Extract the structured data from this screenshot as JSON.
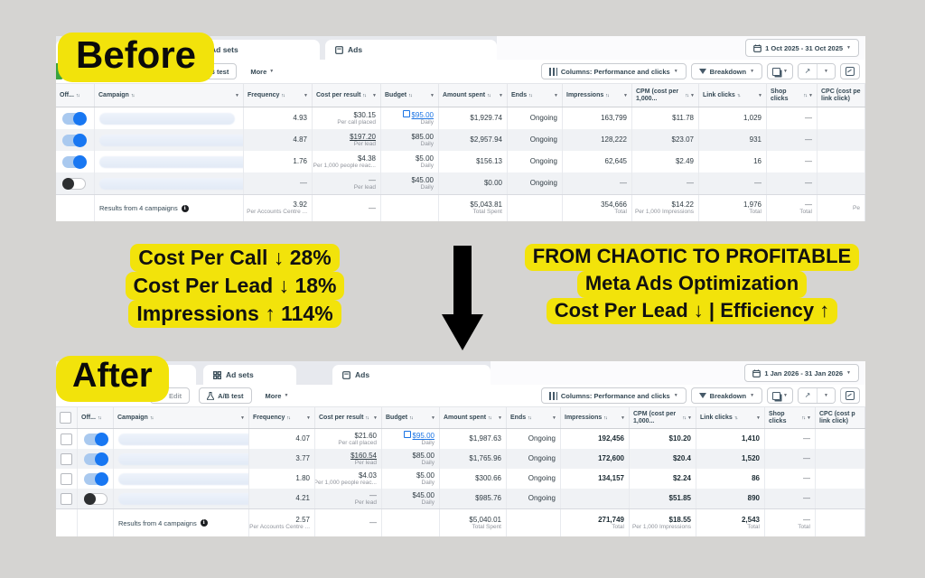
{
  "page": {
    "background": "#d5d4d2",
    "highlight_yellow": "#f2e30b",
    "toggle_blue": "#1877f2",
    "link_blue": "#1b74e4"
  },
  "labels": {
    "before": "Before",
    "after": "After"
  },
  "stats": {
    "lines": [
      "Cost Per Call ↓ 28%",
      "Cost Per Lead ↓ 18%",
      "Impressions ↑ 114%"
    ]
  },
  "headline": {
    "lines": [
      "FROM CHAOTIC TO PROFITABLE",
      "Meta Ads Optimization",
      "Cost Per Lead ↓ | Efficiency ↑"
    ]
  },
  "before": {
    "tabs": {
      "adsets": "Ad sets",
      "ads": "Ads"
    },
    "date_range": "1 Oct 2025 - 31 Oct 2025",
    "toolbar": {
      "ab_test": "A/B test",
      "more": "More",
      "columns": "Columns: Performance and clicks",
      "breakdown": "Breakdown"
    },
    "table": {
      "has_checkbox": false,
      "columns": [
        {
          "key": "off",
          "label": "Off...",
          "sort": true,
          "dd": false
        },
        {
          "key": "campaign",
          "label": "Campaign",
          "sort": true,
          "dd": true
        },
        {
          "key": "frequency",
          "label": "Frequency",
          "sort": true,
          "dd": true
        },
        {
          "key": "cost_per_result",
          "label": "Cost per result",
          "sort": true,
          "dd": true
        },
        {
          "key": "budget",
          "label": "Budget",
          "sort": true,
          "dd": true
        },
        {
          "key": "amount_spent",
          "label": "Amount spent",
          "sort": true,
          "dd": true
        },
        {
          "key": "ends",
          "label": "Ends",
          "sort": true,
          "dd": true
        },
        {
          "key": "impressions",
          "label": "Impressions",
          "sort": true,
          "dd": true
        },
        {
          "key": "cpm",
          "label": "CPM (cost per 1,000...",
          "sort": true,
          "dd": true
        },
        {
          "key": "link_clicks",
          "label": "Link clicks",
          "sort": true,
          "dd": true
        },
        {
          "key": "shop_clicks",
          "label": "Shop clicks",
          "sort": true,
          "dd": true
        },
        {
          "key": "cpc",
          "label": "CPC (cost pe link click)",
          "sort": false,
          "dd": false
        }
      ],
      "rows": [
        {
          "toggle": "on",
          "cells": [
            "4.93",
            {
              "v": "$30.15",
              "s": "Per call placed"
            },
            {
              "v": "$95.00",
              "s": "Daily",
              "link": true,
              "und": true,
              "icon": true
            },
            "$1,929.74",
            "Ongoing",
            "163,799",
            "$11.78",
            "1,029",
            "—",
            ""
          ]
        },
        {
          "toggle": "on",
          "cells": [
            "4.87",
            {
              "v": "$197.20",
              "s": "Per lead",
              "und": true
            },
            {
              "v": "$85.00",
              "s": "Daily"
            },
            "$2,957.94",
            "Ongoing",
            "128,222",
            "$23.07",
            "931",
            "—",
            ""
          ]
        },
        {
          "toggle": "on",
          "cells": [
            "1.76",
            {
              "v": "$4.38",
              "s": "Per 1,000 people reac..."
            },
            {
              "v": "$5.00",
              "s": "Daily"
            },
            "$156.13",
            "Ongoing",
            "62,645",
            "$2.49",
            "16",
            "—",
            ""
          ]
        },
        {
          "toggle": "off",
          "cells": [
            "—",
            {
              "v": "—",
              "s": "Per lead"
            },
            {
              "v": "$45.00",
              "s": "Daily"
            },
            "$0.00",
            "Ongoing",
            "—",
            "—",
            "—",
            "—",
            ""
          ]
        }
      ],
      "summary": {
        "label": "Results from 4 campaigns",
        "cells": [
          {
            "v": "3.92",
            "s": "Per Accounts Centre ..."
          },
          "—",
          "",
          {
            "v": "$5,043.81",
            "s": "Total Spent"
          },
          "",
          {
            "v": "354,666",
            "s": "Total"
          },
          {
            "v": "$14.22",
            "s": "Per 1,000 Impressions"
          },
          {
            "v": "1,976",
            "s": "Total"
          },
          {
            "v": "—",
            "s": "Total"
          },
          {
            "v": "",
            "s": "Pe"
          }
        ]
      }
    }
  },
  "after": {
    "tabs": {
      "adsets": "Ad sets",
      "ads": "Ads"
    },
    "date_range": "1 Jan 2026 - 31 Jan 2026",
    "toolbar": {
      "edit": "Edit",
      "ab_test": "A/B test",
      "more": "More",
      "columns": "Columns: Performance and clicks",
      "breakdown": "Breakdown"
    },
    "table": {
      "has_checkbox": true,
      "bold_columns": [
        "impressions",
        "cpm",
        "link_clicks"
      ],
      "columns": [
        {
          "key": "off",
          "label": "Off...",
          "sort": true,
          "dd": false
        },
        {
          "key": "campaign",
          "label": "Campaign",
          "sort": true,
          "dd": true
        },
        {
          "key": "frequency",
          "label": "Frequency",
          "sort": true,
          "dd": true
        },
        {
          "key": "cost_per_result",
          "label": "Cost per result",
          "sort": true,
          "dd": true
        },
        {
          "key": "budget",
          "label": "Budget",
          "sort": true,
          "dd": true
        },
        {
          "key": "amount_spent",
          "label": "Amount spent",
          "sort": true,
          "dd": true
        },
        {
          "key": "ends",
          "label": "Ends",
          "sort": true,
          "dd": true
        },
        {
          "key": "impressions",
          "label": "Impressions",
          "sort": true,
          "dd": true
        },
        {
          "key": "cpm",
          "label": "CPM (cost per 1,000...",
          "sort": true,
          "dd": true
        },
        {
          "key": "link_clicks",
          "label": "Link clicks",
          "sort": true,
          "dd": true
        },
        {
          "key": "shop_clicks",
          "label": "Shop clicks",
          "sort": true,
          "dd": true
        },
        {
          "key": "cpc",
          "label": "CPC (cost p link click)",
          "sort": false,
          "dd": false
        }
      ],
      "rows": [
        {
          "toggle": "on",
          "cells": [
            "4.07",
            {
              "v": "$21.60",
              "s": "Per call placed"
            },
            {
              "v": "$95.00",
              "s": "Daily",
              "link": true,
              "und": true,
              "icon": true
            },
            "$1,987.63",
            "Ongoing",
            "192,456",
            "$10.20",
            "1,410",
            "—",
            ""
          ]
        },
        {
          "toggle": "on",
          "cells": [
            "3.77",
            {
              "v": "$160.54",
              "s": "Per lead",
              "und": true
            },
            {
              "v": "$85.00",
              "s": "Daily"
            },
            "$1,765.96",
            "Ongoing",
            "172,600",
            "$20.4",
            "1,520",
            "—",
            ""
          ]
        },
        {
          "toggle": "on",
          "cells": [
            "1.80",
            {
              "v": "$4.03",
              "s": "Per 1,000 people reac..."
            },
            {
              "v": "$5.00",
              "s": "Daily"
            },
            "$300.66",
            "Ongoing",
            "134,157",
            "$2.24",
            "86",
            "—",
            ""
          ]
        },
        {
          "toggle": "off",
          "cells": [
            "4.21",
            {
              "v": "—",
              "s": "Per lead"
            },
            {
              "v": "$45.00",
              "s": "Daily"
            },
            "$985.76",
            "Ongoing",
            "",
            "$51.85",
            "890",
            "—",
            ""
          ]
        }
      ],
      "summary": {
        "label": "Results from 4 campaigns",
        "cells": [
          {
            "v": "2.57",
            "s": "Per Accounts Centre ..."
          },
          "—",
          "",
          {
            "v": "$5,040.01",
            "s": "Total Spent"
          },
          "",
          {
            "v": "271,749",
            "s": "Total"
          },
          {
            "v": "$18.55",
            "s": "Per 1,000 Impressions"
          },
          {
            "v": "2,543",
            "s": "Total"
          },
          {
            "v": "—",
            "s": "Total"
          },
          ""
        ]
      }
    }
  }
}
